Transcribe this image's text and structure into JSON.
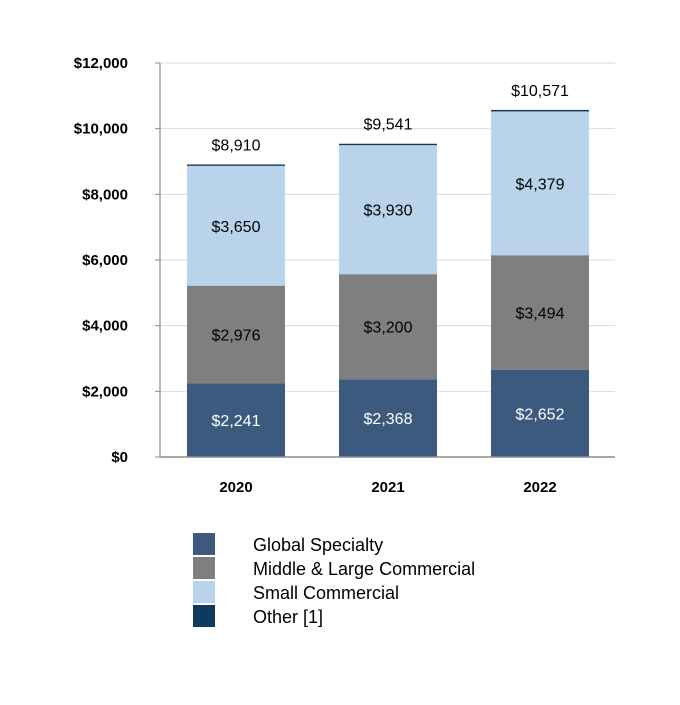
{
  "chart_data": {
    "type": "bar",
    "stacked": true,
    "title": "",
    "xlabel": "",
    "ylabel": "",
    "categories": [
      "2020",
      "2021",
      "2022"
    ],
    "ylim": [
      0,
      12000
    ],
    "yticks": [
      0,
      2000,
      4000,
      6000,
      8000,
      10000,
      12000
    ],
    "ytick_labels": [
      "$0",
      "$2,000",
      "$4,000",
      "$6,000",
      "$8,000",
      "$10,000",
      "$12,000"
    ],
    "grid": true,
    "legend_position": "bottom",
    "series": [
      {
        "name": "Global Specialty",
        "color": "#3c5a7d",
        "label_color": "#ffffff",
        "values": [
          2241,
          2368,
          2652
        ],
        "labels": [
          "$2,241",
          "$2,368",
          "$2,652"
        ]
      },
      {
        "name": "Middle & Large Commercial",
        "color": "#7f7f7f",
        "label_color": "#000000",
        "values": [
          2976,
          3200,
          3494
        ],
        "labels": [
          "$2,976",
          "$3,200",
          "$3,494"
        ]
      },
      {
        "name": "Small Commercial",
        "color": "#b9d3ea",
        "label_color": "#000000",
        "values": [
          3650,
          3930,
          4379
        ],
        "labels": [
          "$3,650",
          "$3,930",
          "$4,379"
        ]
      },
      {
        "name": "Other [1]",
        "color": "#0e3a5e",
        "label_color": "#000000",
        "values": [
          43,
          43,
          46
        ],
        "labels": [
          "",
          "",
          ""
        ]
      }
    ],
    "totals": [
      8910,
      9541,
      10571
    ],
    "total_labels": [
      "$8,910",
      "$9,541",
      "$10,571"
    ]
  }
}
